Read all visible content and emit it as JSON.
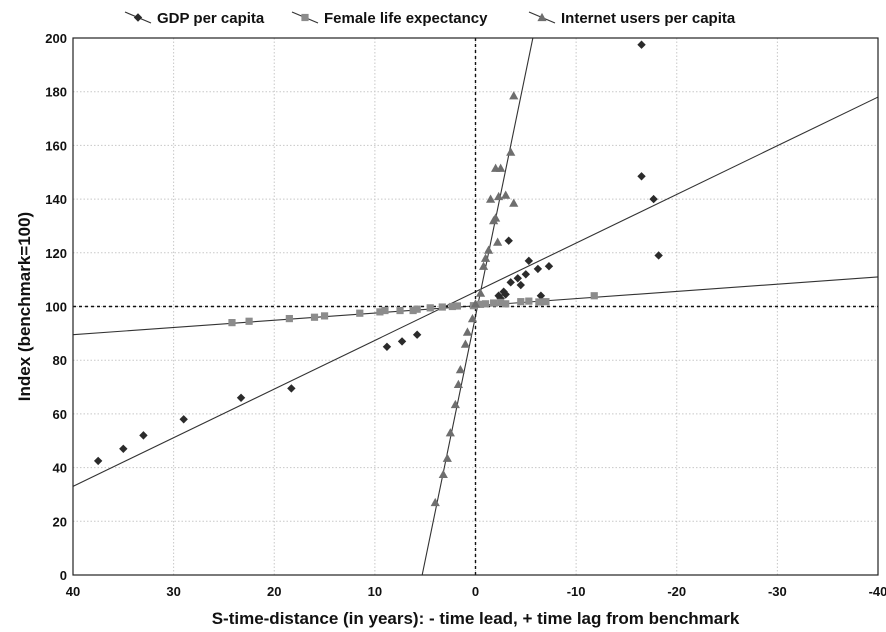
{
  "chart_data": {
    "type": "scatter",
    "title": "",
    "xlabel": "S-time-distance (in years): - time lead, + time lag from benchmark",
    "ylabel": "Index (benchmark=100)",
    "xlim": [
      40,
      -40
    ],
    "ylim": [
      0,
      200
    ],
    "x_ticks": [
      40,
      30,
      20,
      10,
      0,
      -10,
      -20,
      -30,
      -40
    ],
    "x_tick_labels": [
      "40",
      "30",
      "20",
      "10",
      "0",
      "-10",
      "-20",
      "-30",
      "-40"
    ],
    "y_ticks": [
      0,
      20,
      40,
      60,
      80,
      100,
      120,
      140,
      160,
      180,
      200
    ],
    "y_tick_labels": [
      "0",
      "20",
      "40",
      "60",
      "80",
      "100",
      "120",
      "140",
      "160",
      "180",
      "200"
    ],
    "grid": true,
    "legend_position": "top",
    "reference_lines": {
      "x": 0,
      "y": 100
    },
    "series": [
      {
        "name": "GDP per capita",
        "marker": "diamond",
        "color": "#2b2b2b",
        "points": [
          [
            37.5,
            42.5
          ],
          [
            35,
            47
          ],
          [
            33,
            52
          ],
          [
            29,
            58
          ],
          [
            23.3,
            66
          ],
          [
            18.3,
            69.5
          ],
          [
            8.8,
            85
          ],
          [
            7.3,
            87
          ],
          [
            5.8,
            89.5
          ],
          [
            -2.3,
            104
          ],
          [
            -2.5,
            103
          ],
          [
            -2.8,
            105.5
          ],
          [
            -3,
            104.5
          ],
          [
            -3.3,
            124.5
          ],
          [
            -3.5,
            109
          ],
          [
            -4.2,
            110.5
          ],
          [
            -4.5,
            108
          ],
          [
            -5,
            112
          ],
          [
            -5.3,
            117
          ],
          [
            -6.2,
            114
          ],
          [
            -6.5,
            104
          ],
          [
            -7.3,
            115
          ],
          [
            -16.5,
            197.5
          ],
          [
            -16.5,
            148.5
          ],
          [
            -17.7,
            140
          ],
          [
            -18.2,
            119
          ]
        ],
        "fit_line": [
          [
            40,
            33
          ],
          [
            -40,
            178
          ]
        ]
      },
      {
        "name": "Female life expectancy",
        "marker": "square",
        "color": "#8c8c8c",
        "points": [
          [
            24.2,
            94
          ],
          [
            22.5,
            94.5
          ],
          [
            18.5,
            95.5
          ],
          [
            16,
            96
          ],
          [
            15,
            96.5
          ],
          [
            11.5,
            97.5
          ],
          [
            9.5,
            98
          ],
          [
            9,
            98.5
          ],
          [
            7.5,
            98.5
          ],
          [
            6.2,
            98.5
          ],
          [
            5.8,
            99
          ],
          [
            4.5,
            99.5
          ],
          [
            3.3,
            99.8
          ],
          [
            2.3,
            100
          ],
          [
            1.8,
            100.2
          ],
          [
            0.2,
            100.3
          ],
          [
            -0.5,
            100.8
          ],
          [
            -1,
            101
          ],
          [
            -1.8,
            101.3
          ],
          [
            -2.5,
            101.5
          ],
          [
            -3,
            101
          ],
          [
            -4.5,
            101.8
          ],
          [
            -5.3,
            102
          ],
          [
            -6.3,
            101.7
          ],
          [
            -7,
            101.8
          ],
          [
            -11.8,
            104
          ]
        ],
        "fit_line": [
          [
            40,
            89.5
          ],
          [
            -40,
            111
          ]
        ]
      },
      {
        "name": "Internet users per capita",
        "marker": "triangle",
        "color": "#6e6e6e",
        "points": [
          [
            4,
            27
          ],
          [
            3.2,
            37.5
          ],
          [
            2.8,
            43.5
          ],
          [
            2.5,
            53
          ],
          [
            2,
            63.5
          ],
          [
            1.7,
            71
          ],
          [
            1.5,
            76.5
          ],
          [
            1,
            86
          ],
          [
            0.8,
            90.5
          ],
          [
            0.3,
            95.5
          ],
          [
            0,
            101
          ],
          [
            -0.5,
            105
          ],
          [
            -0.8,
            115
          ],
          [
            -1,
            118
          ],
          [
            -1.3,
            121
          ],
          [
            -1.5,
            140
          ],
          [
            -1.8,
            132
          ],
          [
            -2,
            133
          ],
          [
            -2,
            151.5
          ],
          [
            -2.2,
            124
          ],
          [
            -2.3,
            141
          ],
          [
            -2.5,
            151.5
          ],
          [
            -3,
            141.5
          ],
          [
            -3.5,
            157.5
          ],
          [
            -3.8,
            138.5
          ],
          [
            -3.8,
            178.5
          ]
        ],
        "fit_line": [
          [
            5.3,
            0
          ],
          [
            -5.7,
            200
          ]
        ]
      }
    ]
  }
}
